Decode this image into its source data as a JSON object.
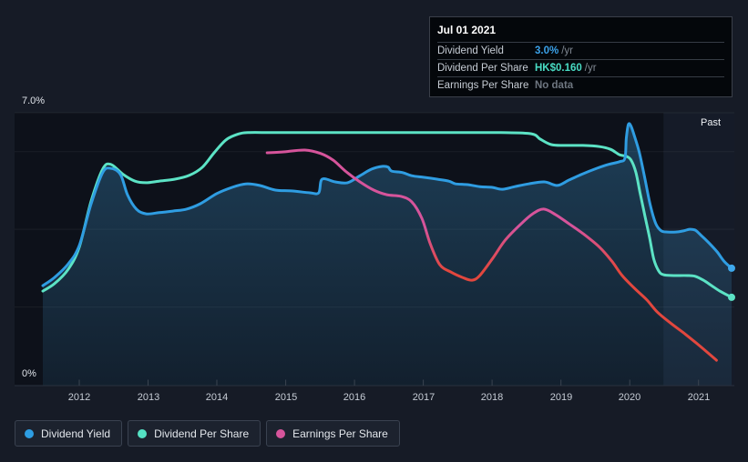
{
  "tooltip": {
    "date": "Jul 01 2021",
    "rows": [
      {
        "label": "Dividend Yield",
        "value": "3.0%",
        "unit": "/yr",
        "value_color": "#3ba1e8"
      },
      {
        "label": "Dividend Per Share",
        "value": "HK$0.160",
        "unit": "/yr",
        "value_color": "#49dcc4"
      },
      {
        "label": "Earnings Per Share",
        "value": "No data",
        "unit": "",
        "value_color": "#6e7680"
      }
    ]
  },
  "legend": [
    {
      "label": "Dividend Yield",
      "color": "#2d9de2"
    },
    {
      "label": "Dividend Per Share",
      "color": "#55e2c4"
    },
    {
      "label": "Earnings Per Share",
      "color": "#d6549b"
    }
  ],
  "chart_data": {
    "type": "line",
    "past_label": "Past",
    "past_region_start": 2020.49,
    "x_axis": {
      "range": [
        2011.06,
        2021.52
      ],
      "ticks": [
        2012,
        2013,
        2014,
        2015,
        2016,
        2017,
        2018,
        2019,
        2020,
        2021
      ]
    },
    "y_axis": {
      "range": [
        0,
        7
      ],
      "unit": "%",
      "top_label": "7.0%",
      "bottom_label": "0%",
      "gridlines": [
        7,
        6,
        4,
        2
      ]
    },
    "colors": {
      "dividend_yield": "#2f9de2",
      "dividend_per_share": "#5ce3c5",
      "earnings_high": "#d6549b",
      "earnings_low": "#e2473e",
      "area_fill": "#3a8cc0",
      "past_band": "rgba(127,167,222,0.07)",
      "plot_bg": "#0d111a",
      "gridline": "rgba(255,255,255,0.06)",
      "axis_line": "#29323f",
      "tick": "#3a4450"
    },
    "series": [
      {
        "name": "Dividend Yield",
        "area_fill": true,
        "end_dot": true,
        "points": [
          [
            2011.47,
            2.55
          ],
          [
            2011.64,
            2.76
          ],
          [
            2011.84,
            3.11
          ],
          [
            2012.0,
            3.58
          ],
          [
            2012.17,
            4.64
          ],
          [
            2012.34,
            5.46
          ],
          [
            2012.46,
            5.57
          ],
          [
            2012.6,
            5.41
          ],
          [
            2012.7,
            4.89
          ],
          [
            2012.83,
            4.52
          ],
          [
            2012.97,
            4.4
          ],
          [
            2013.16,
            4.43
          ],
          [
            2013.36,
            4.47
          ],
          [
            2013.56,
            4.52
          ],
          [
            2013.76,
            4.66
          ],
          [
            2014.0,
            4.92
          ],
          [
            2014.22,
            5.08
          ],
          [
            2014.42,
            5.17
          ],
          [
            2014.62,
            5.13
          ],
          [
            2014.85,
            5.01
          ],
          [
            2015.08,
            4.99
          ],
          [
            2015.35,
            4.94
          ],
          [
            2015.48,
            4.94
          ],
          [
            2015.53,
            5.29
          ],
          [
            2015.72,
            5.22
          ],
          [
            2015.9,
            5.2
          ],
          [
            2016.08,
            5.38
          ],
          [
            2016.25,
            5.55
          ],
          [
            2016.41,
            5.62
          ],
          [
            2016.49,
            5.6
          ],
          [
            2016.54,
            5.5
          ],
          [
            2016.7,
            5.46
          ],
          [
            2016.83,
            5.38
          ],
          [
            2017.0,
            5.34
          ],
          [
            2017.2,
            5.29
          ],
          [
            2017.37,
            5.24
          ],
          [
            2017.47,
            5.17
          ],
          [
            2017.64,
            5.15
          ],
          [
            2017.82,
            5.1
          ],
          [
            2018.0,
            5.08
          ],
          [
            2018.15,
            5.03
          ],
          [
            2018.33,
            5.1
          ],
          [
            2018.53,
            5.17
          ],
          [
            2018.76,
            5.22
          ],
          [
            2018.95,
            5.13
          ],
          [
            2019.12,
            5.27
          ],
          [
            2019.32,
            5.43
          ],
          [
            2019.52,
            5.57
          ],
          [
            2019.69,
            5.67
          ],
          [
            2019.85,
            5.74
          ],
          [
            2019.93,
            5.83
          ],
          [
            2019.95,
            6.34
          ],
          [
            2019.98,
            6.7
          ],
          [
            2020.02,
            6.65
          ],
          [
            2020.07,
            6.39
          ],
          [
            2020.14,
            5.97
          ],
          [
            2020.22,
            5.31
          ],
          [
            2020.3,
            4.61
          ],
          [
            2020.38,
            4.14
          ],
          [
            2020.46,
            3.96
          ],
          [
            2020.55,
            3.93
          ],
          [
            2020.67,
            3.93
          ],
          [
            2020.78,
            3.96
          ],
          [
            2020.87,
            4.0
          ],
          [
            2020.95,
            3.98
          ],
          [
            2021.04,
            3.84
          ],
          [
            2021.15,
            3.65
          ],
          [
            2021.27,
            3.42
          ],
          [
            2021.37,
            3.18
          ],
          [
            2021.48,
            3.0
          ]
        ]
      },
      {
        "name": "Dividend Per Share",
        "area_fill": false,
        "end_dot": true,
        "points": [
          [
            2011.47,
            2.41
          ],
          [
            2011.64,
            2.6
          ],
          [
            2011.84,
            2.97
          ],
          [
            2012.0,
            3.54
          ],
          [
            2012.17,
            4.71
          ],
          [
            2012.34,
            5.55
          ],
          [
            2012.46,
            5.67
          ],
          [
            2012.64,
            5.41
          ],
          [
            2012.81,
            5.24
          ],
          [
            2012.97,
            5.2
          ],
          [
            2013.16,
            5.24
          ],
          [
            2013.39,
            5.29
          ],
          [
            2013.6,
            5.39
          ],
          [
            2013.79,
            5.6
          ],
          [
            2013.96,
            5.97
          ],
          [
            2014.13,
            6.3
          ],
          [
            2014.29,
            6.44
          ],
          [
            2014.45,
            6.49
          ],
          [
            2014.82,
            6.49
          ],
          [
            2015.48,
            6.49
          ],
          [
            2016.14,
            6.49
          ],
          [
            2016.8,
            6.49
          ],
          [
            2017.47,
            6.49
          ],
          [
            2018.13,
            6.49
          ],
          [
            2018.57,
            6.46
          ],
          [
            2018.7,
            6.32
          ],
          [
            2018.86,
            6.18
          ],
          [
            2019.06,
            6.16
          ],
          [
            2019.32,
            6.16
          ],
          [
            2019.56,
            6.13
          ],
          [
            2019.72,
            6.06
          ],
          [
            2019.85,
            5.92
          ],
          [
            2019.95,
            5.88
          ],
          [
            2020.02,
            5.78
          ],
          [
            2020.09,
            5.46
          ],
          [
            2020.15,
            4.94
          ],
          [
            2020.22,
            4.35
          ],
          [
            2020.29,
            3.77
          ],
          [
            2020.35,
            3.23
          ],
          [
            2020.42,
            2.93
          ],
          [
            2020.49,
            2.83
          ],
          [
            2020.64,
            2.81
          ],
          [
            2020.84,
            2.81
          ],
          [
            2020.95,
            2.79
          ],
          [
            2021.07,
            2.69
          ],
          [
            2021.19,
            2.55
          ],
          [
            2021.31,
            2.41
          ],
          [
            2021.48,
            2.25
          ]
        ]
      },
      {
        "name": "Earnings Per Share",
        "area_fill": false,
        "end_dot": false,
        "points": [
          [
            2014.73,
            5.97
          ],
          [
            2014.95,
            5.99
          ],
          [
            2015.28,
            6.04
          ],
          [
            2015.51,
            5.95
          ],
          [
            2015.69,
            5.78
          ],
          [
            2015.88,
            5.48
          ],
          [
            2016.08,
            5.22
          ],
          [
            2016.28,
            5.01
          ],
          [
            2016.47,
            4.89
          ],
          [
            2016.67,
            4.85
          ],
          [
            2016.83,
            4.71
          ],
          [
            2016.98,
            4.28
          ],
          [
            2017.1,
            3.63
          ],
          [
            2017.24,
            3.09
          ],
          [
            2017.4,
            2.9
          ],
          [
            2017.57,
            2.76
          ],
          [
            2017.71,
            2.69
          ],
          [
            2017.82,
            2.81
          ],
          [
            2018.0,
            3.23
          ],
          [
            2018.19,
            3.72
          ],
          [
            2018.42,
            4.14
          ],
          [
            2018.59,
            4.4
          ],
          [
            2018.75,
            4.52
          ],
          [
            2018.92,
            4.38
          ],
          [
            2019.12,
            4.14
          ],
          [
            2019.32,
            3.89
          ],
          [
            2019.56,
            3.54
          ],
          [
            2019.74,
            3.18
          ],
          [
            2019.89,
            2.81
          ],
          [
            2020.07,
            2.48
          ],
          [
            2020.25,
            2.18
          ],
          [
            2020.4,
            1.87
          ],
          [
            2020.59,
            1.59
          ],
          [
            2020.8,
            1.31
          ],
          [
            2021.01,
            1.01
          ],
          [
            2021.26,
            0.63
          ]
        ]
      }
    ]
  }
}
